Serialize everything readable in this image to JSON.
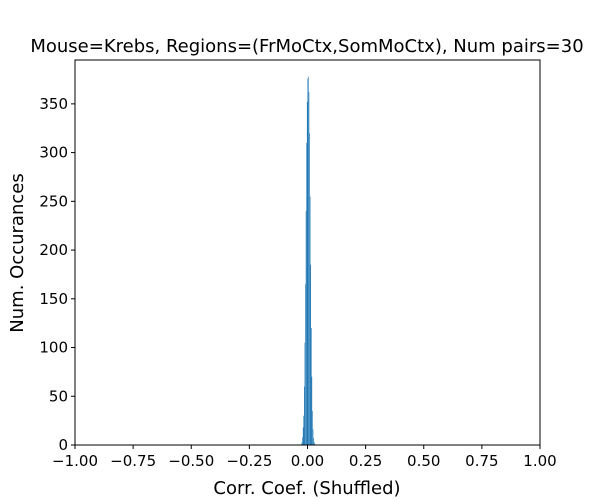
{
  "chart_data": {
    "type": "bar",
    "title": "Mouse=Krebs, Regions=(FrMoCtx,SomMoCtx), Num pairs=30",
    "xlabel": "Corr. Coef. (Shuffled)",
    "ylabel": "Num. Occurances",
    "xlim": [
      -1.0,
      1.0
    ],
    "ylim": [
      0,
      395
    ],
    "xticks": [
      -1.0,
      -0.75,
      -0.5,
      -0.25,
      0.0,
      0.25,
      0.5,
      0.75,
      1.0
    ],
    "xtick_labels": [
      "−1.00",
      "−0.75",
      "−0.50",
      "−0.25",
      "0.00",
      "0.25",
      "0.50",
      "0.75",
      "1.00"
    ],
    "yticks": [
      0,
      50,
      100,
      150,
      200,
      250,
      300,
      350
    ],
    "ytick_labels": [
      "0",
      "50",
      "100",
      "150",
      "200",
      "250",
      "300",
      "350"
    ],
    "grid": false,
    "bar_color": "#1f77b4",
    "bin_width": 0.0025,
    "series": [
      {
        "x": [
          -0.0275,
          -0.025,
          -0.0225,
          -0.02,
          -0.0175,
          -0.015,
          -0.0125,
          -0.01,
          -0.0075,
          -0.005,
          -0.0025,
          0.0,
          0.0025,
          0.005,
          0.0075,
          0.01,
          0.0125,
          0.015,
          0.0175,
          0.02,
          0.0225,
          0.025,
          0.0275,
          0.03
        ],
        "values": [
          1,
          3,
          8,
          18,
          30,
          60,
          105,
          165,
          240,
          310,
          352,
          376,
          378,
          362,
          320,
          255,
          185,
          120,
          70,
          35,
          16,
          7,
          3,
          1
        ]
      }
    ]
  }
}
